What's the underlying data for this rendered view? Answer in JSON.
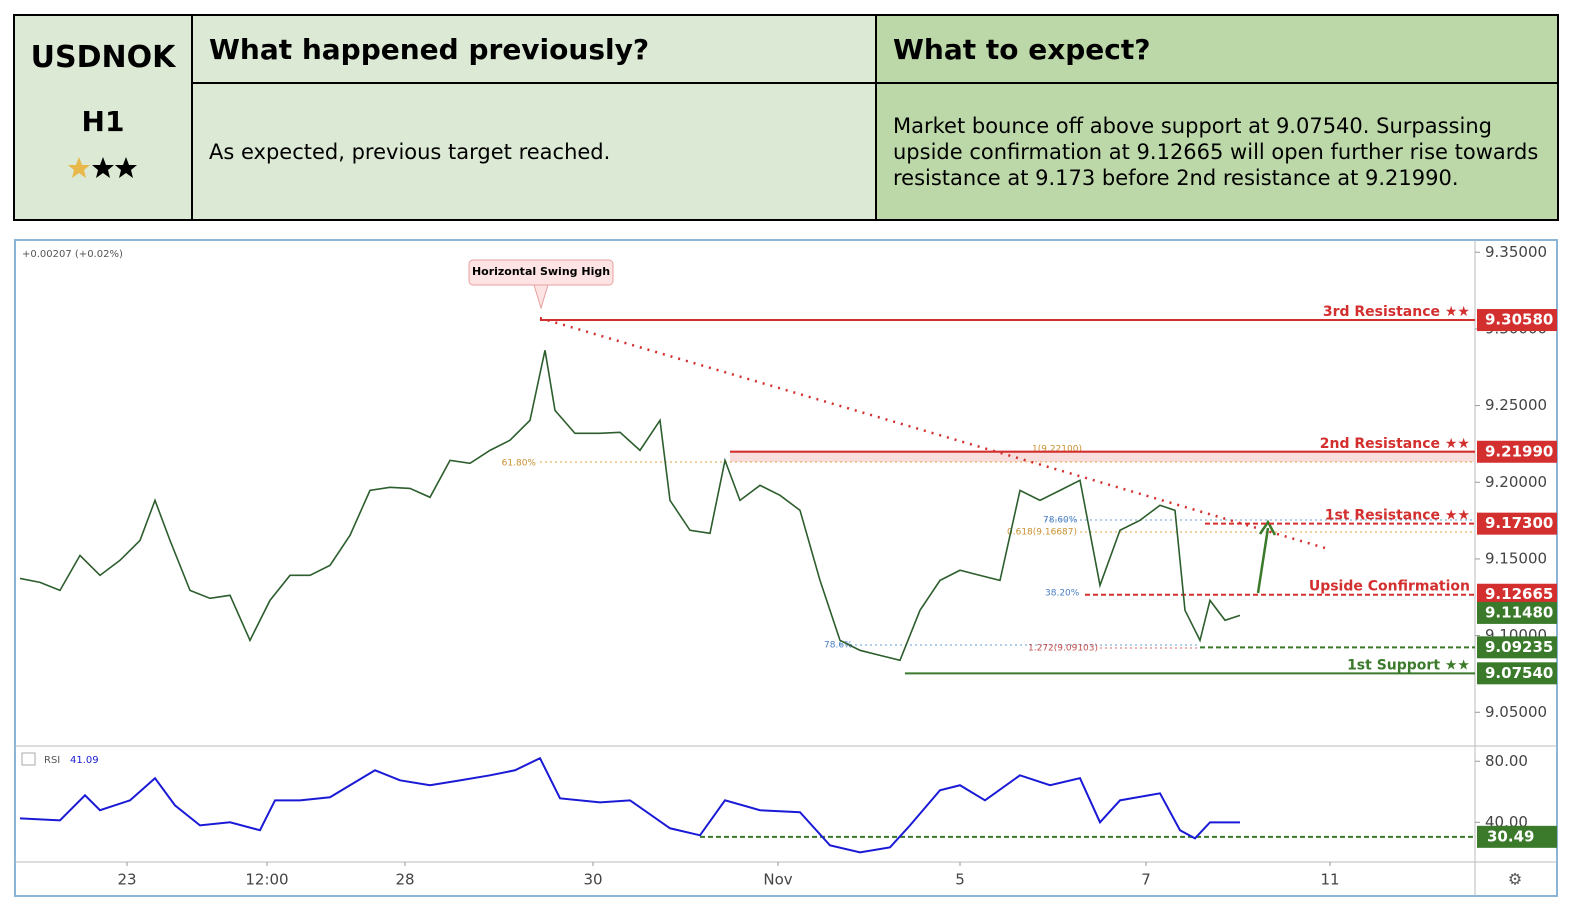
{
  "table": {
    "symbol": "USDNOK",
    "timeframe": "H1",
    "headers": [
      "What happened previously?",
      "What to expect?"
    ],
    "cells": [
      "As expected, previous target reached.",
      "Market bounce off above support at 9.07540. Surpassing upside confirmation at 9.12665 will open further rise towards resistance at 9.173 before 2nd resistance at 9.21990."
    ]
  },
  "chart_data": {
    "type": "line",
    "change": "+0.00207 (+0.02%)",
    "annotation": "Horizontal Swing High",
    "color": "#2d5e2d",
    "x": [
      0.5,
      2.5,
      4.5,
      6.5,
      8.5,
      10.5,
      12.5,
      14,
      15.5,
      17.5,
      19.5,
      21.5,
      23.5,
      25.5,
      27.5,
      29.5,
      31.5,
      33.5,
      35.5,
      37.5,
      39.5,
      41.5,
      43.5,
      45.5,
      47.5,
      49.5,
      51.5,
      53,
      54,
      56,
      58.5,
      60.5,
      62.5,
      64.5,
      65.5,
      67.5,
      69.5,
      71,
      72.5,
      74.5,
      76.5,
      78.5,
      80.5,
      82.5,
      84.5,
      86.5,
      88.5,
      90.5,
      92.5,
      94.5,
      96.5,
      98.5,
      100.5,
      102.5,
      104.5,
      106.5,
      108.5,
      110.5,
      112.5,
      114.5,
      116,
      117,
      118.5,
      119.5,
      121,
      122.5
    ],
    "values": [
      9.1373,
      9.1347,
      9.1295,
      9.1523,
      9.1393,
      9.1491,
      9.1621,
      9.1882,
      9.1621,
      9.1295,
      9.1243,
      9.1263,
      9.0969,
      9.123,
      9.1393,
      9.1393,
      9.1458,
      9.1654,
      9.1947,
      9.1967,
      9.196,
      9.1902,
      9.2143,
      9.2124,
      9.2208,
      9.2274,
      9.2404,
      9.2861,
      9.2469,
      9.2319,
      9.2319,
      9.2326,
      9.2208,
      9.2404,
      9.1882,
      9.1687,
      9.1667,
      9.2143,
      9.1882,
      9.198,
      9.1915,
      9.1817,
      9.136,
      9.0969,
      9.0904,
      9.0871,
      9.0839,
      9.1165,
      9.136,
      9.1426,
      9.1393,
      9.136,
      9.1947,
      9.1882,
      9.1947,
      9.2013,
      9.1328,
      9.1687,
      9.1752,
      9.185,
      9.1817,
      9.1165,
      9.0969,
      9.123,
      9.11,
      9.1132
    ],
    "xlim": [
      0,
      146
    ],
    "xticks": [
      {
        "value": 11.2,
        "label": "23"
      },
      {
        "value": 25.2,
        "label": "12:00"
      },
      {
        "value": 39,
        "label": "28"
      },
      {
        "value": 57.8,
        "label": "30"
      },
      {
        "value": 76.3,
        "label": "Nov"
      },
      {
        "value": 94.5,
        "label": "5"
      },
      {
        "value": 113.1,
        "label": "7"
      },
      {
        "value": 131.5,
        "label": "11"
      }
    ],
    "ylim": [
      9.028,
      9.358
    ],
    "yticks": [
      {
        "value": 9.35,
        "label": "9.35000"
      },
      {
        "value": 9.3,
        "label": "9.30000"
      },
      {
        "value": 9.25,
        "label": "9.25000"
      },
      {
        "value": 9.2,
        "label": "9.20000"
      },
      {
        "value": 9.15,
        "label": "9.15000"
      },
      {
        "value": 9.1,
        "label": "9.10000"
      },
      {
        "value": 9.05,
        "label": "9.05000"
      }
    ],
    "levels": [
      {
        "name": "3rd Resistance ★★",
        "value": 9.3058,
        "label": "9.30580",
        "color": "#d32f2f",
        "from": 52.5,
        "style": "solid"
      },
      {
        "name": "2nd Resistance ★★",
        "value": 9.2199,
        "label": "9.21990",
        "color": "#d32f2f",
        "from": 71.5,
        "style": "solid"
      },
      {
        "name": "1st Resistance ★★",
        "value": 9.173,
        "label": "9.17300",
        "color": "#d32f2f",
        "from": 119,
        "style": "dashed"
      },
      {
        "name": "Upside Confirmation",
        "value": 9.12665,
        "label": "9.12665",
        "color": "#d32f2f",
        "from": 107,
        "style": "dashed"
      },
      {
        "value": 9.1148,
        "label": "9.11480",
        "color": "#3a7a2a"
      },
      {
        "value": 9.09235,
        "label": "9.09235",
        "color": "#3a7a2a",
        "from": 118.5,
        "style": "dashed"
      },
      {
        "name": "1st Support ★★",
        "value": 9.0754,
        "label": "9.07540",
        "color": "#3a7a2a",
        "from": 89,
        "style": "solid"
      }
    ],
    "fib_labels": [
      "61.80%",
      "1(9.22100)",
      "78.60%",
      "0.618(9.16687)",
      "38.20%",
      "1.272(9.09103)",
      "78.6%"
    ],
    "rsi": {
      "label": "RSI",
      "current": 41.09,
      "color": "#1a1ad6",
      "x": [
        0.5,
        4.5,
        7,
        8.5,
        11.5,
        14,
        16,
        18.5,
        21.5,
        24.5,
        26,
        28.5,
        31.5,
        33.5,
        36,
        38.5,
        41.5,
        44.5,
        47.5,
        50,
        52.5,
        54.5,
        58.5,
        61.5,
        65.5,
        68.5,
        71,
        74.5,
        78.5,
        81.5,
        84.5,
        87.5,
        89.5,
        92.5,
        94.5,
        97,
        100.5,
        103.5,
        106.5,
        108.5,
        110.5,
        114.5,
        116.5,
        118,
        119.5,
        122.5
      ],
      "values": [
        42.6,
        41.3,
        57.7,
        47.9,
        54.4,
        68.9,
        51.1,
        38.0,
        40.0,
        34.8,
        54.4,
        54.4,
        56.4,
        64.3,
        74.1,
        67.5,
        64.3,
        67.5,
        70.8,
        74.1,
        82.0,
        55.7,
        53.1,
        54.4,
        36.1,
        31.5,
        54.4,
        47.9,
        46.6,
        24.9,
        20.3,
        23.6,
        38.0,
        61.0,
        64.3,
        54.4,
        70.8,
        64.3,
        68.9,
        40.0,
        54.4,
        59.0,
        34.8,
        29.5,
        40.0,
        40.0
      ],
      "ylim": [
        14,
        90
      ],
      "yticks": [
        {
          "value": 80,
          "label": "80.00"
        },
        {
          "value": 40,
          "label": "40.00"
        }
      ],
      "level": 30.49,
      "level_from": 68.5
    }
  }
}
